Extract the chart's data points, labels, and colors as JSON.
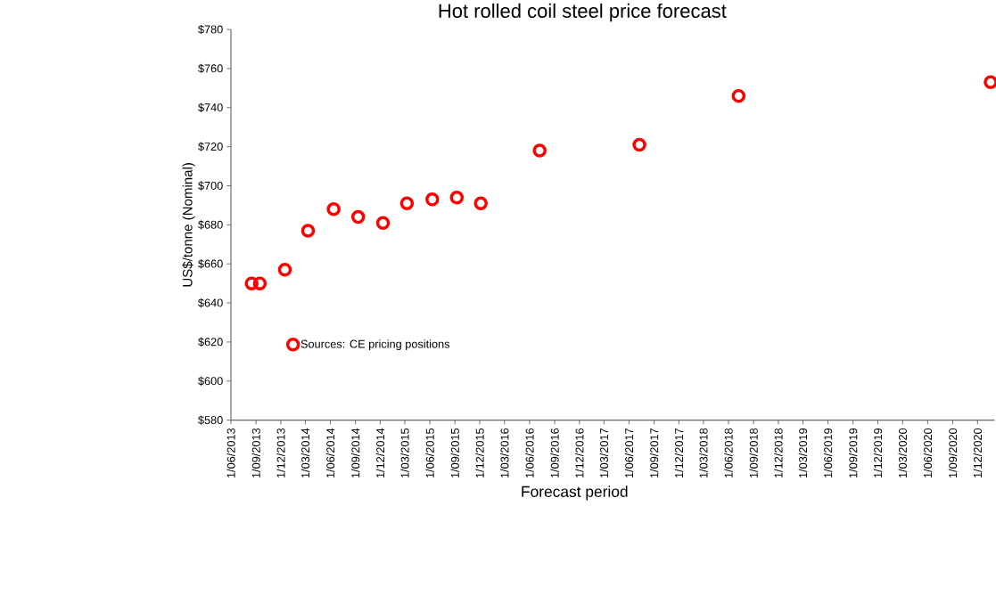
{
  "chart_data": {
    "type": "scatter",
    "title": "Hot rolled coil steel price forecast",
    "xlabel": "Forecast period",
    "ylabel": "US$/tonne (Nominal)",
    "x": [
      "2013-08-16",
      "2013-09-15",
      "2013-12-16",
      "2014-03-11",
      "2014-06-13",
      "2014-09-11",
      "2014-12-11",
      "2015-03-09",
      "2015-06-10",
      "2015-09-08",
      "2015-12-05",
      "2016-07-08",
      "2017-07-09",
      "2018-07-08",
      "2021-01-18"
    ],
    "series": [
      {
        "name": "Sources: CE pricing positions",
        "color": "#ff0000",
        "values": [
          650,
          650,
          657,
          677,
          688,
          684,
          681,
          691,
          693,
          694,
          691,
          718,
          721,
          746,
          753
        ]
      }
    ],
    "xlim": [
      "2013-06-01",
      "2021-02-01"
    ],
    "xticks": [
      {
        "value": "2013-06-01",
        "label": "1/06/2013"
      },
      {
        "value": "2013-09-01",
        "label": "1/09/2013"
      },
      {
        "value": "2013-12-01",
        "label": "1/12/2013"
      },
      {
        "value": "2014-03-01",
        "label": "1/03/2014"
      },
      {
        "value": "2014-06-01",
        "label": "1/06/2014"
      },
      {
        "value": "2014-09-01",
        "label": "1/09/2014"
      },
      {
        "value": "2014-12-01",
        "label": "1/12/2014"
      },
      {
        "value": "2015-03-01",
        "label": "1/03/2015"
      },
      {
        "value": "2015-06-01",
        "label": "1/06/2015"
      },
      {
        "value": "2015-09-01",
        "label": "1/09/2015"
      },
      {
        "value": "2015-12-01",
        "label": "1/12/2015"
      },
      {
        "value": "2016-03-01",
        "label": "1/03/2016"
      },
      {
        "value": "2016-06-01",
        "label": "1/06/2016"
      },
      {
        "value": "2016-09-01",
        "label": "1/09/2016"
      },
      {
        "value": "2016-12-01",
        "label": "1/12/2016"
      },
      {
        "value": "2017-03-01",
        "label": "1/03/2017"
      },
      {
        "value": "2017-06-01",
        "label": "1/06/2017"
      },
      {
        "value": "2017-09-01",
        "label": "1/09/2017"
      },
      {
        "value": "2017-12-01",
        "label": "1/12/2017"
      },
      {
        "value": "2018-03-01",
        "label": "1/03/2018"
      },
      {
        "value": "2018-06-01",
        "label": "1/06/2018"
      },
      {
        "value": "2018-09-01",
        "label": "1/09/2018"
      },
      {
        "value": "2018-12-01",
        "label": "1/12/2018"
      },
      {
        "value": "2019-03-01",
        "label": "1/03/2019"
      },
      {
        "value": "2019-06-01",
        "label": "1/06/2019"
      },
      {
        "value": "2019-09-01",
        "label": "1/09/2019"
      },
      {
        "value": "2019-12-01",
        "label": "1/12/2019"
      },
      {
        "value": "2020-03-01",
        "label": "1/03/2020"
      },
      {
        "value": "2020-06-01",
        "label": "1/06/2020"
      },
      {
        "value": "2020-09-01",
        "label": "1/09/2020"
      },
      {
        "value": "2020-12-01",
        "label": "1/12/2020"
      }
    ],
    "ylim": [
      580,
      780
    ],
    "yticks": [
      {
        "value": 580,
        "label": "$580"
      },
      {
        "value": 600,
        "label": "$600"
      },
      {
        "value": 620,
        "label": "$620"
      },
      {
        "value": 640,
        "label": "$640"
      },
      {
        "value": 660,
        "label": "$660"
      },
      {
        "value": 680,
        "label": "$680"
      },
      {
        "value": 700,
        "label": "$700"
      },
      {
        "value": 720,
        "label": "$720"
      },
      {
        "value": 740,
        "label": "$740"
      },
      {
        "value": 760,
        "label": "$760"
      },
      {
        "value": 780,
        "label": "$780"
      }
    ],
    "legend": "bottom left",
    "marker": "circle",
    "grid": false
  }
}
